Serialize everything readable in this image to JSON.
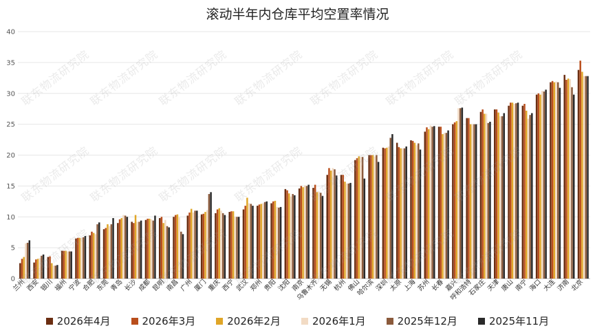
{
  "chart_data": {
    "type": "bar",
    "title": "滚动半年内仓库平均空置率情况",
    "xlabel": "",
    "ylabel": "",
    "ylim": [
      0,
      40
    ],
    "yticks": [
      0,
      5,
      10,
      15,
      20,
      25,
      30,
      35,
      40
    ],
    "grid": true,
    "legend_position": "bottom",
    "watermark": "联东物流研究院",
    "categories": [
      "兰州",
      "西安",
      "银川",
      "福州",
      "宁波",
      "合肥",
      "东莞",
      "青岛",
      "长沙",
      "成都",
      "昆明",
      "南昌",
      "广州",
      "厦门",
      "重庆",
      "西宁",
      "武汉",
      "郑州",
      "贵阳",
      "沈阳",
      "南京",
      "乌鲁木齐",
      "无锡",
      "杭州",
      "佛山",
      "哈尔滨",
      "深圳",
      "太原",
      "上海",
      "苏州",
      "长春",
      "嘉兴",
      "呼和浩特",
      "石家庄",
      "天津",
      "唐山",
      "南宁",
      "海口",
      "大连",
      "济南",
      "北京"
    ],
    "series": [
      {
        "name": "2026年4月",
        "color": "#6b2e12",
        "values": [
          2.5,
          2.6,
          3.5,
          4.5,
          6.5,
          7.0,
          8.0,
          9.0,
          9.2,
          9.5,
          9.8,
          10.0,
          10.2,
          10.4,
          10.6,
          10.8,
          11.2,
          11.8,
          12.2,
          14.5,
          14.6,
          14.7,
          16.8,
          16.8,
          19.2,
          20.0,
          21.2,
          22.0,
          22.4,
          23.8,
          24.6,
          25.0,
          26.0,
          27.0,
          27.4,
          28.0,
          28.0,
          29.8,
          31.8,
          33.0,
          33.8
        ]
      },
      {
        "name": "2026年3月",
        "color": "#b94e1c",
        "values": [
          3.2,
          3.1,
          3.6,
          4.5,
          6.6,
          7.6,
          8.2,
          9.6,
          9.0,
          9.7,
          10.0,
          10.3,
          10.7,
          10.5,
          11.2,
          10.9,
          11.8,
          12.0,
          12.5,
          14.3,
          15.0,
          15.2,
          17.9,
          16.8,
          19.5,
          20.0,
          21.1,
          21.3,
          22.3,
          24.5,
          24.6,
          25.3,
          26.0,
          27.4,
          27.4,
          28.5,
          28.3,
          30.0,
          32.0,
          32.2,
          35.3
        ]
      },
      {
        "name": "2026年2月",
        "color": "#e0a628",
        "values": [
          3.5,
          3.2,
          2.5,
          4.5,
          6.6,
          7.4,
          8.8,
          9.8,
          10.3,
          9.7,
          9.0,
          10.4,
          11.3,
          10.8,
          11.4,
          10.9,
          13.1,
          12.1,
          12.6,
          13.8,
          14.8,
          14.0,
          17.5,
          15.7,
          19.8,
          20.0,
          21.2,
          21.1,
          22.0,
          24.2,
          23.4,
          25.5,
          25.0,
          26.7,
          26.9,
          28.5,
          27.2,
          29.8,
          31.8,
          32.4,
          33.5
        ]
      },
      {
        "name": "2026年1月",
        "color": "#f2dbc4",
        "values": [
          5.7,
          3.3,
          2.1,
          4.4,
          6.6,
          7.2,
          8.5,
          10.3,
          9.2,
          9.6,
          9.5,
          9.9,
          10.7,
          11.1,
          11.0,
          10.0,
          12.2,
          12.2,
          11.6,
          13.3,
          15.1,
          14.1,
          17.9,
          15.4,
          19.7,
          19.8,
          21.4,
          21.1,
          21.6,
          24.8,
          23.6,
          27.6,
          25.0,
          26.7,
          26.3,
          28.3,
          25.9,
          30.4,
          31.9,
          32.3,
          32.8
        ]
      },
      {
        "name": "2025年12月",
        "color": "#8b5a3c",
        "values": [
          5.8,
          3.7,
          2.1,
          4.4,
          6.7,
          8.8,
          8.8,
          10.2,
          9.2,
          9.4,
          8.5,
          7.6,
          11.0,
          13.7,
          10.6,
          10.0,
          12.1,
          12.4,
          11.5,
          13.7,
          15.0,
          13.9,
          17.7,
          15.4,
          19.7,
          20.0,
          22.8,
          21.1,
          21.9,
          24.6,
          23.6,
          27.6,
          25.0,
          25.2,
          26.3,
          28.4,
          26.5,
          30.3,
          31.8,
          31.0,
          32.8
        ]
      },
      {
        "name": "2025年11月",
        "color": "#2a2a2a",
        "values": [
          6.2,
          3.9,
          2.2,
          4.4,
          6.9,
          9.1,
          9.8,
          10.0,
          9.4,
          10.2,
          8.3,
          7.2,
          11.0,
          14.0,
          10.3,
          10.0,
          11.8,
          12.5,
          11.6,
          13.5,
          15.2,
          13.4,
          16.7,
          15.5,
          16.2,
          18.9,
          23.4,
          21.4,
          20.9,
          24.7,
          24.0,
          27.7,
          25.0,
          25.4,
          26.8,
          28.5,
          26.8,
          30.6,
          30.9,
          29.8,
          32.8
        ]
      }
    ]
  }
}
